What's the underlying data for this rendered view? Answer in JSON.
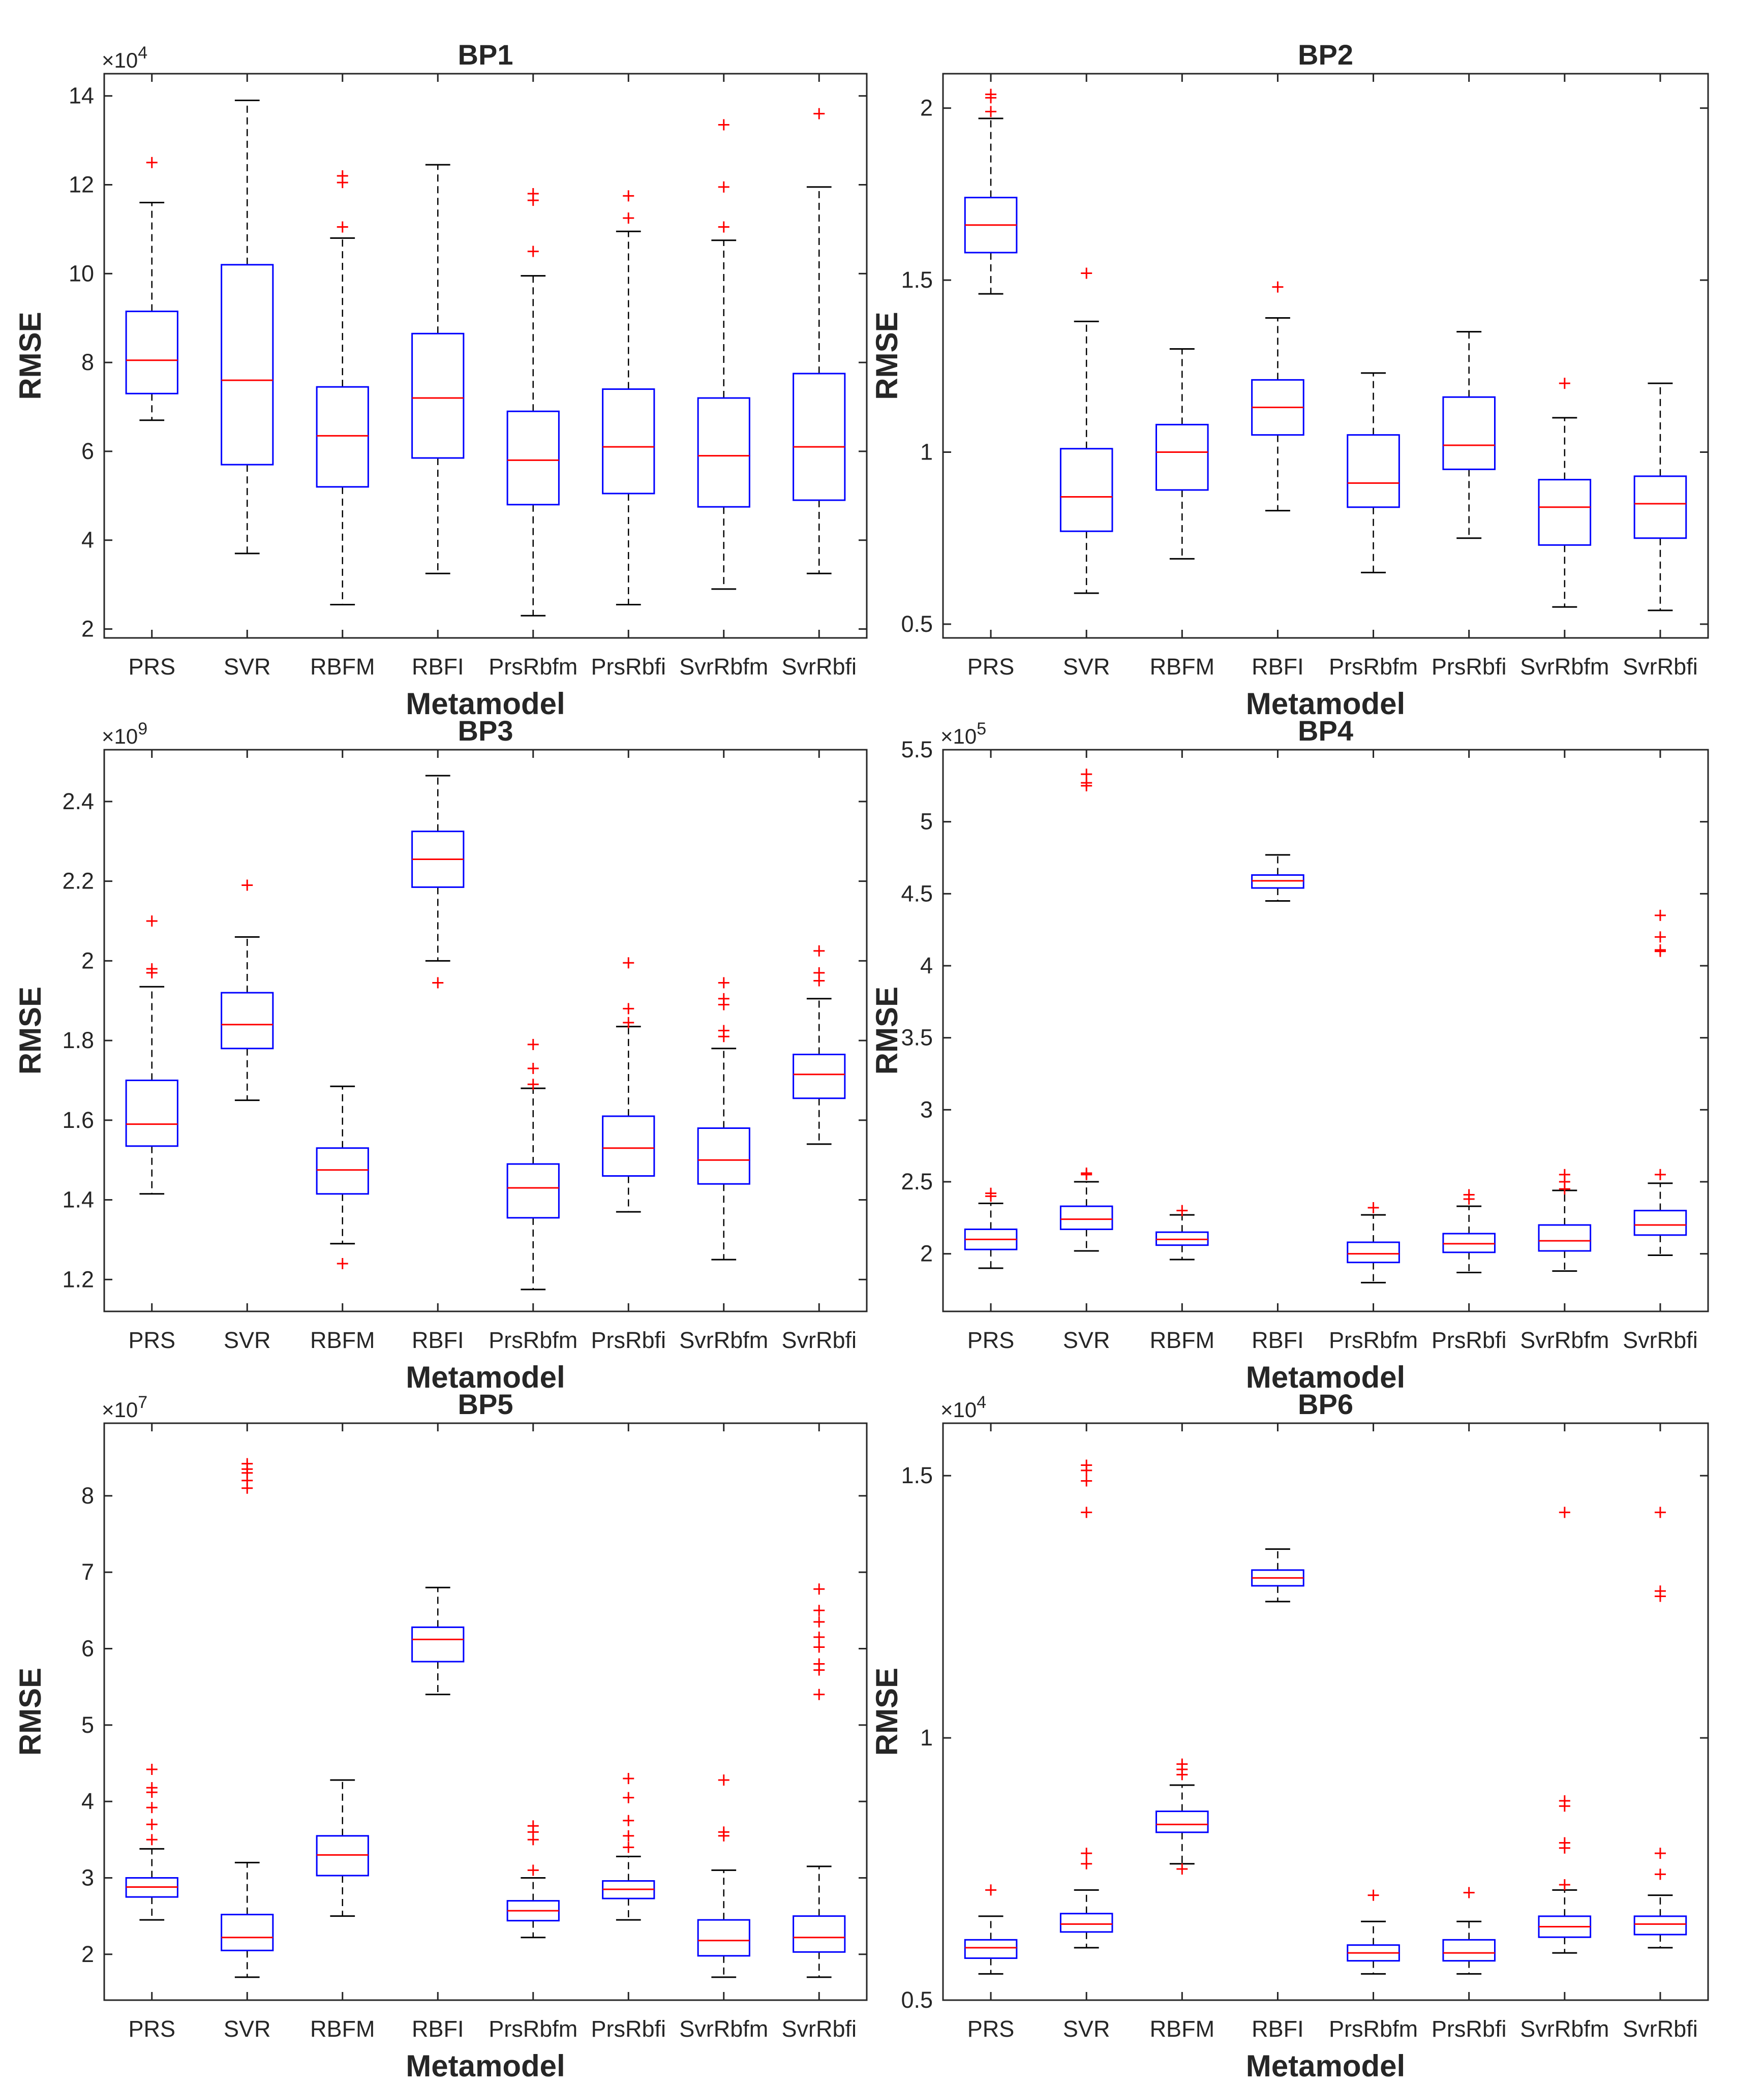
{
  "figure": {
    "colors": {
      "box": "#0000ff",
      "median": "#ff0000",
      "outlier": "#ff0000",
      "whisker": "#000000",
      "axis": "#262626"
    }
  },
  "chart_data": [
    {
      "type": "box",
      "title": "BP1",
      "xlabel": "Metamodel",
      "ylabel": "RMSE",
      "exponent_label": "×10^4",
      "exponent_base": "×10",
      "exponent_power": "4",
      "categories": [
        "PRS",
        "SVR",
        "RBFM",
        "RBFI",
        "PrsRbfm",
        "PrsRbfi",
        "SvrRbfm",
        "SvrRbfi"
      ],
      "ylim": [
        1.8,
        14.5
      ],
      "yticks": [
        2,
        4,
        6,
        8,
        10,
        12,
        14
      ],
      "ytick_labels": [
        "2",
        "4",
        "6",
        "8",
        "10",
        "12",
        "14"
      ],
      "boxes": [
        {
          "whisker_low": 6.7,
          "q1": 7.3,
          "median": 8.05,
          "q3": 9.15,
          "whisker_high": 11.6,
          "outliers": [
            12.5
          ]
        },
        {
          "whisker_low": 3.7,
          "q1": 5.7,
          "median": 7.6,
          "q3": 10.2,
          "whisker_high": 13.9,
          "outliers": []
        },
        {
          "whisker_low": 2.55,
          "q1": 5.2,
          "median": 6.35,
          "q3": 7.45,
          "whisker_high": 10.8,
          "outliers": [
            11.05,
            12.05,
            12.2
          ]
        },
        {
          "whisker_low": 3.25,
          "q1": 5.85,
          "median": 7.2,
          "q3": 8.65,
          "whisker_high": 12.45,
          "outliers": []
        },
        {
          "whisker_low": 2.3,
          "q1": 4.8,
          "median": 5.8,
          "q3": 6.9,
          "whisker_high": 9.95,
          "outliers": [
            10.5,
            11.65,
            11.8
          ]
        },
        {
          "whisker_low": 2.55,
          "q1": 5.05,
          "median": 6.1,
          "q3": 7.4,
          "whisker_high": 10.95,
          "outliers": [
            11.25,
            11.75
          ]
        },
        {
          "whisker_low": 2.9,
          "q1": 4.75,
          "median": 5.9,
          "q3": 7.2,
          "whisker_high": 10.75,
          "outliers": [
            11.05,
            11.95,
            13.35
          ]
        },
        {
          "whisker_low": 3.25,
          "q1": 4.9,
          "median": 6.1,
          "q3": 7.75,
          "whisker_high": 11.95,
          "outliers": [
            13.6
          ]
        }
      ]
    },
    {
      "type": "box",
      "title": "BP2",
      "xlabel": "Metamodel",
      "ylabel": "RMSE",
      "exponent_label": "",
      "exponent_base": "",
      "exponent_power": "",
      "categories": [
        "PRS",
        "SVR",
        "RBFM",
        "RBFI",
        "PrsRbfm",
        "PrsRbfi",
        "SvrRbfm",
        "SvrRbfi"
      ],
      "ylim": [
        0.46,
        2.1
      ],
      "yticks": [
        0.5,
        1,
        1.5,
        2
      ],
      "ytick_labels": [
        "0.5",
        "1",
        "1.5",
        "2"
      ],
      "boxes": [
        {
          "whisker_low": 1.46,
          "q1": 1.58,
          "median": 1.66,
          "q3": 1.74,
          "whisker_high": 1.97,
          "outliers": [
            1.99,
            2.03,
            2.04
          ]
        },
        {
          "whisker_low": 0.59,
          "q1": 0.77,
          "median": 0.87,
          "q3": 1.01,
          "whisker_high": 1.38,
          "outliers": [
            1.52
          ]
        },
        {
          "whisker_low": 0.69,
          "q1": 0.89,
          "median": 1.0,
          "q3": 1.08,
          "whisker_high": 1.3,
          "outliers": []
        },
        {
          "whisker_low": 0.83,
          "q1": 1.05,
          "median": 1.13,
          "q3": 1.21,
          "whisker_high": 1.39,
          "outliers": [
            1.48
          ]
        },
        {
          "whisker_low": 0.65,
          "q1": 0.84,
          "median": 0.91,
          "q3": 1.05,
          "whisker_high": 1.23,
          "outliers": []
        },
        {
          "whisker_low": 0.75,
          "q1": 0.95,
          "median": 1.02,
          "q3": 1.16,
          "whisker_high": 1.35,
          "outliers": []
        },
        {
          "whisker_low": 0.55,
          "q1": 0.73,
          "median": 0.84,
          "q3": 0.92,
          "whisker_high": 1.1,
          "outliers": [
            1.2
          ]
        },
        {
          "whisker_low": 0.54,
          "q1": 0.75,
          "median": 0.85,
          "q3": 0.93,
          "whisker_high": 1.2,
          "outliers": []
        }
      ]
    },
    {
      "type": "box",
      "title": "BP3",
      "xlabel": "Metamodel",
      "ylabel": "RMSE",
      "exponent_label": "×10^9",
      "exponent_base": "×10",
      "exponent_power": "9",
      "categories": [
        "PRS",
        "SVR",
        "RBFM",
        "RBFI",
        "PrsRbfm",
        "PrsRbfi",
        "SvrRbfm",
        "SvrRbfi"
      ],
      "ylim": [
        1.12,
        2.53
      ],
      "yticks": [
        1.2,
        1.4,
        1.6,
        1.8,
        2,
        2.2,
        2.4
      ],
      "ytick_labels": [
        "1.2",
        "1.4",
        "1.6",
        "1.8",
        "2",
        "2.2",
        "2.4"
      ],
      "boxes": [
        {
          "whisker_low": 1.415,
          "q1": 1.535,
          "median": 1.59,
          "q3": 1.7,
          "whisker_high": 1.935,
          "outliers": [
            1.97,
            1.98,
            2.1
          ]
        },
        {
          "whisker_low": 1.65,
          "q1": 1.78,
          "median": 1.84,
          "q3": 1.92,
          "whisker_high": 2.06,
          "outliers": [
            2.19
          ]
        },
        {
          "whisker_low": 1.29,
          "q1": 1.415,
          "median": 1.475,
          "q3": 1.53,
          "whisker_high": 1.685,
          "outliers": [
            1.24
          ]
        },
        {
          "whisker_low": 2.0,
          "q1": 2.185,
          "median": 2.255,
          "q3": 2.325,
          "whisker_high": 2.465,
          "outliers": [
            1.945
          ]
        },
        {
          "whisker_low": 1.175,
          "q1": 1.355,
          "median": 1.43,
          "q3": 1.49,
          "whisker_high": 1.68,
          "outliers": [
            1.69,
            1.73,
            1.79
          ]
        },
        {
          "whisker_low": 1.37,
          "q1": 1.46,
          "median": 1.53,
          "q3": 1.61,
          "whisker_high": 1.835,
          "outliers": [
            1.845,
            1.88,
            1.995
          ]
        },
        {
          "whisker_low": 1.25,
          "q1": 1.44,
          "median": 1.5,
          "q3": 1.58,
          "whisker_high": 1.78,
          "outliers": [
            1.81,
            1.825,
            1.89,
            1.905,
            1.945
          ]
        },
        {
          "whisker_low": 1.54,
          "q1": 1.655,
          "median": 1.715,
          "q3": 1.765,
          "whisker_high": 1.905,
          "outliers": [
            1.95,
            1.97,
            2.025
          ]
        }
      ]
    },
    {
      "type": "box",
      "title": "BP4",
      "xlabel": "Metamodel",
      "ylabel": "RMSE",
      "exponent_label": "×10^5",
      "exponent_base": "×10",
      "exponent_power": "5",
      "categories": [
        "PRS",
        "SVR",
        "RBFM",
        "RBFI",
        "PrsRbfm",
        "PrsRbfi",
        "SvrRbfm",
        "SvrRbfi"
      ],
      "ylim": [
        1.6,
        5.5
      ],
      "yticks": [
        2,
        2.5,
        3,
        3.5,
        4,
        4.5,
        5,
        5.5
      ],
      "ytick_labels": [
        "2",
        "2.5",
        "3",
        "3.5",
        "4",
        "4.5",
        "5",
        "5.5"
      ],
      "boxes": [
        {
          "whisker_low": 1.9,
          "q1": 2.03,
          "median": 2.1,
          "q3": 2.17,
          "whisker_high": 2.35,
          "outliers": [
            2.4,
            2.42
          ]
        },
        {
          "whisker_low": 2.02,
          "q1": 2.17,
          "median": 2.24,
          "q3": 2.33,
          "whisker_high": 2.5,
          "outliers": [
            2.55,
            2.56,
            5.25,
            5.27,
            5.33
          ]
        },
        {
          "whisker_low": 1.96,
          "q1": 2.06,
          "median": 2.1,
          "q3": 2.15,
          "whisker_high": 2.27,
          "outliers": [
            2.3
          ]
        },
        {
          "whisker_low": 4.45,
          "q1": 4.54,
          "median": 4.59,
          "q3": 4.63,
          "whisker_high": 4.77,
          "outliers": []
        },
        {
          "whisker_low": 1.8,
          "q1": 1.94,
          "median": 2.0,
          "q3": 2.08,
          "whisker_high": 2.27,
          "outliers": [
            2.32
          ]
        },
        {
          "whisker_low": 1.87,
          "q1": 2.01,
          "median": 2.07,
          "q3": 2.14,
          "whisker_high": 2.33,
          "outliers": [
            2.38,
            2.41
          ]
        },
        {
          "whisker_low": 1.88,
          "q1": 2.02,
          "median": 2.09,
          "q3": 2.2,
          "whisker_high": 2.44,
          "outliers": [
            2.45,
            2.5,
            2.55
          ]
        },
        {
          "whisker_low": 1.99,
          "q1": 2.13,
          "median": 2.2,
          "q3": 2.3,
          "whisker_high": 2.49,
          "outliers": [
            2.55,
            4.1,
            4.11,
            4.2,
            4.35
          ]
        }
      ]
    },
    {
      "type": "box",
      "title": "BP5",
      "xlabel": "Metamodel",
      "ylabel": "RMSE",
      "exponent_label": "×10^7",
      "exponent_base": "×10",
      "exponent_power": "7",
      "categories": [
        "PRS",
        "SVR",
        "RBFM",
        "RBFI",
        "PrsRbfm",
        "PrsRbfi",
        "SvrRbfm",
        "SvrRbfi"
      ],
      "ylim": [
        1.4,
        8.95
      ],
      "yticks": [
        2,
        3,
        4,
        5,
        6,
        7,
        8
      ],
      "ytick_labels": [
        "2",
        "3",
        "4",
        "5",
        "6",
        "7",
        "8"
      ],
      "boxes": [
        {
          "whisker_low": 2.45,
          "q1": 2.75,
          "median": 2.88,
          "q3": 3.0,
          "whisker_high": 3.38,
          "outliers": [
            3.5,
            3.7,
            3.92,
            4.12,
            4.18,
            4.42
          ]
        },
        {
          "whisker_low": 1.7,
          "q1": 2.05,
          "median": 2.22,
          "q3": 2.52,
          "whisker_high": 3.2,
          "outliers": [
            8.1,
            8.2,
            8.3,
            8.35,
            8.42
          ]
        },
        {
          "whisker_low": 2.5,
          "q1": 3.03,
          "median": 3.3,
          "q3": 3.55,
          "whisker_high": 4.28,
          "outliers": []
        },
        {
          "whisker_low": 5.4,
          "q1": 5.83,
          "median": 6.12,
          "q3": 6.28,
          "whisker_high": 6.8,
          "outliers": []
        },
        {
          "whisker_low": 2.22,
          "q1": 2.44,
          "median": 2.57,
          "q3": 2.7,
          "whisker_high": 3.0,
          "outliers": [
            3.1,
            3.5,
            3.6,
            3.68
          ]
        },
        {
          "whisker_low": 2.45,
          "q1": 2.73,
          "median": 2.85,
          "q3": 2.96,
          "whisker_high": 3.28,
          "outliers": [
            3.4,
            3.55,
            3.75,
            4.05,
            4.3
          ]
        },
        {
          "whisker_low": 1.7,
          "q1": 1.98,
          "median": 2.18,
          "q3": 2.45,
          "whisker_high": 3.1,
          "outliers": [
            3.55,
            3.6,
            4.28
          ]
        },
        {
          "whisker_low": 1.7,
          "q1": 2.03,
          "median": 2.22,
          "q3": 2.5,
          "whisker_high": 3.15,
          "outliers": [
            5.4,
            5.72,
            5.8,
            6.02,
            6.15,
            6.35,
            6.5,
            6.78
          ]
        }
      ]
    },
    {
      "type": "box",
      "title": "BP6",
      "xlabel": "Metamodel",
      "ylabel": "RMSE",
      "exponent_label": "×10^4",
      "exponent_base": "×10",
      "exponent_power": "4",
      "categories": [
        "PRS",
        "SVR",
        "RBFM",
        "RBFI",
        "PrsRbfm",
        "PrsRbfi",
        "SvrRbfm",
        "SvrRbfi"
      ],
      "ylim": [
        0.5,
        1.6
      ],
      "yticks": [
        0.5,
        1,
        1.5
      ],
      "ytick_labels": [
        "0.5",
        "1",
        "1.5"
      ],
      "boxes": [
        {
          "whisker_low": 0.55,
          "q1": 0.58,
          "median": 0.6,
          "q3": 0.615,
          "whisker_high": 0.66,
          "outliers": [
            0.71
          ]
        },
        {
          "whisker_low": 0.6,
          "q1": 0.63,
          "median": 0.645,
          "q3": 0.665,
          "whisker_high": 0.71,
          "outliers": [
            0.76,
            0.78,
            1.43,
            1.49,
            1.51,
            1.52
          ]
        },
        {
          "whisker_low": 0.76,
          "q1": 0.82,
          "median": 0.835,
          "q3": 0.86,
          "whisker_high": 0.91,
          "outliers": [
            0.75,
            0.93,
            0.94,
            0.95
          ]
        },
        {
          "whisker_low": 1.26,
          "q1": 1.29,
          "median": 1.305,
          "q3": 1.32,
          "whisker_high": 1.36,
          "outliers": []
        },
        {
          "whisker_low": 0.55,
          "q1": 0.575,
          "median": 0.59,
          "q3": 0.605,
          "whisker_high": 0.65,
          "outliers": [
            0.7
          ]
        },
        {
          "whisker_low": 0.55,
          "q1": 0.575,
          "median": 0.59,
          "q3": 0.615,
          "whisker_high": 0.65,
          "outliers": [
            0.705
          ]
        },
        {
          "whisker_low": 0.59,
          "q1": 0.62,
          "median": 0.64,
          "q3": 0.66,
          "whisker_high": 0.71,
          "outliers": [
            0.72,
            0.79,
            0.8,
            0.87,
            0.88,
            1.43
          ]
        },
        {
          "whisker_low": 0.6,
          "q1": 0.625,
          "median": 0.645,
          "q3": 0.66,
          "whisker_high": 0.7,
          "outliers": [
            0.74,
            0.78,
            1.27,
            1.28,
            1.43
          ]
        }
      ]
    }
  ]
}
